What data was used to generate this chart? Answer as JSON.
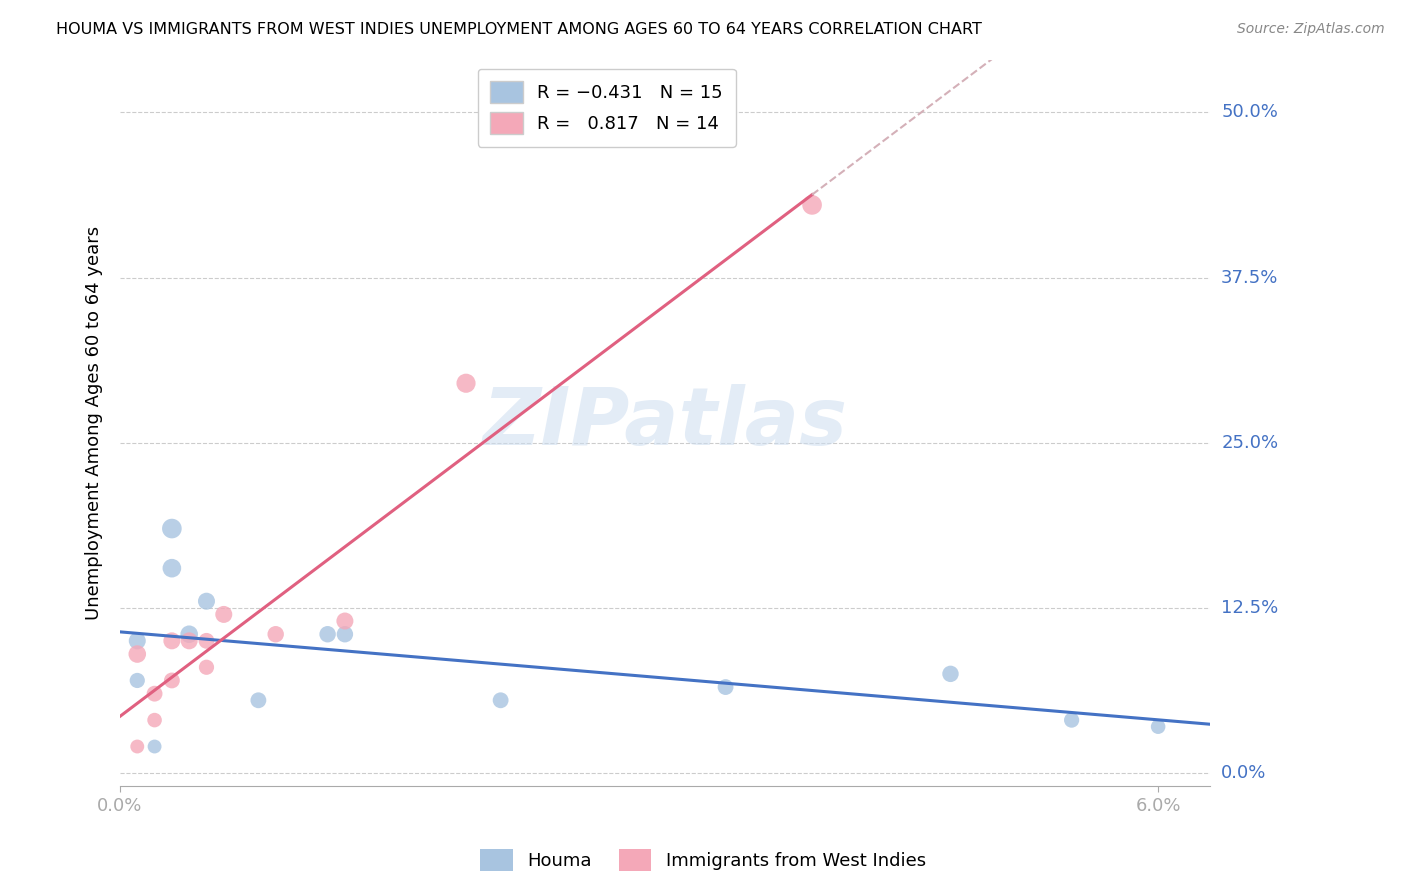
{
  "title": "HOUMA VS IMMIGRANTS FROM WEST INDIES UNEMPLOYMENT AMONG AGES 60 TO 64 YEARS CORRELATION CHART",
  "source": "Source: ZipAtlas.com",
  "ylabel": "Unemployment Among Ages 60 to 64 years",
  "ytick_labels": [
    "0.0%",
    "12.5%",
    "25.0%",
    "37.5%",
    "50.0%"
  ],
  "ytick_values": [
    0.0,
    0.125,
    0.25,
    0.375,
    0.5
  ],
  "xtick_labels": [
    "0.0%",
    "6.0%"
  ],
  "xtick_values": [
    0.0,
    0.06
  ],
  "xlim": [
    0.0,
    0.063
  ],
  "ylim": [
    -0.01,
    0.54
  ],
  "houma_R": -0.431,
  "houma_N": 15,
  "wi_R": 0.817,
  "wi_N": 14,
  "houma_color": "#a8c4e0",
  "wi_color": "#f4a8b8",
  "houma_line_color": "#4472c4",
  "wi_line_color": "#e06080",
  "trend_ext_color": "#d4b0b8",
  "watermark": "ZIPatlas",
  "houma_x": [
    0.001,
    0.001,
    0.002,
    0.003,
    0.003,
    0.004,
    0.005,
    0.008,
    0.012,
    0.013,
    0.022,
    0.035,
    0.048,
    0.055,
    0.06
  ],
  "houma_y": [
    0.07,
    0.1,
    0.02,
    0.155,
    0.185,
    0.105,
    0.13,
    0.055,
    0.105,
    0.105,
    0.055,
    0.065,
    0.075,
    0.04,
    0.035
  ],
  "wi_x": [
    0.001,
    0.001,
    0.002,
    0.002,
    0.003,
    0.003,
    0.004,
    0.005,
    0.005,
    0.006,
    0.009,
    0.013,
    0.02,
    0.04
  ],
  "wi_y": [
    0.02,
    0.09,
    0.06,
    0.04,
    0.1,
    0.07,
    0.1,
    0.1,
    0.08,
    0.12,
    0.105,
    0.115,
    0.295,
    0.43
  ],
  "houma_dot_sizes": [
    120,
    150,
    100,
    180,
    200,
    160,
    150,
    130,
    140,
    140,
    130,
    130,
    140,
    120,
    110
  ],
  "wi_dot_sizes": [
    100,
    160,
    130,
    110,
    150,
    130,
    150,
    130,
    120,
    150,
    140,
    150,
    190,
    200
  ]
}
